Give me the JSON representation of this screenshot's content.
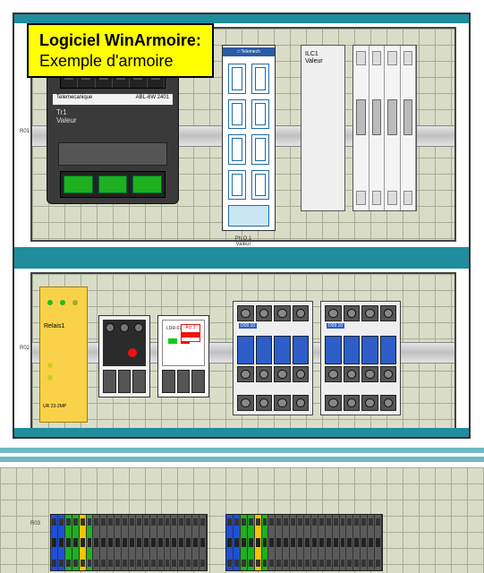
{
  "theme": {
    "teal": "#1f8d9e",
    "light_teal": "#6fbac4",
    "hatch_base": "#d9ddc8",
    "hatch_line": "#a8ad95",
    "callout_bg": "#ffff00",
    "green": "#1eb01e",
    "coil_blue": "#2d5ec7",
    "relay_bg": "#f9d24a"
  },
  "callout": {
    "title": "Logiciel WinArmoire:",
    "subtitle": "Exemple d'armoire"
  },
  "upper": {
    "rail_left_label": "R01",
    "psu": {
      "brand": "Telemecanique",
      "model": "ABL-6W 2401",
      "name": "Tr1",
      "value": "Valeur",
      "top_terminals": 6,
      "bottom_terminals": 3
    },
    "switch": {
      "brand": "□ Telemech",
      "ports": 8
    },
    "plc": {
      "name": "ILC1",
      "value": "Valeur"
    },
    "breaker": {
      "poles": 4
    },
    "center": {
      "l1": "Ph.O.1",
      "l2": "Valeur"
    }
  },
  "lower": {
    "rail_left_label": "R02",
    "relay": {
      "name": "Relais1",
      "model": "UR 23-2MP"
    },
    "overload2": {
      "tag": "LDR-07",
      "flag": "Acr.1"
    },
    "contactor": {
      "model": "D09 10",
      "terminals_per_row": 4
    }
  },
  "terminals": {
    "rail_label": "R03",
    "pattern": [
      "b",
      "b",
      "g",
      "g",
      "y",
      "g",
      "",
      "",
      "",
      "",
      "",
      "",
      "",
      "",
      "",
      "",
      "",
      "",
      "",
      "",
      "",
      ""
    ],
    "count_per_block": 22
  }
}
